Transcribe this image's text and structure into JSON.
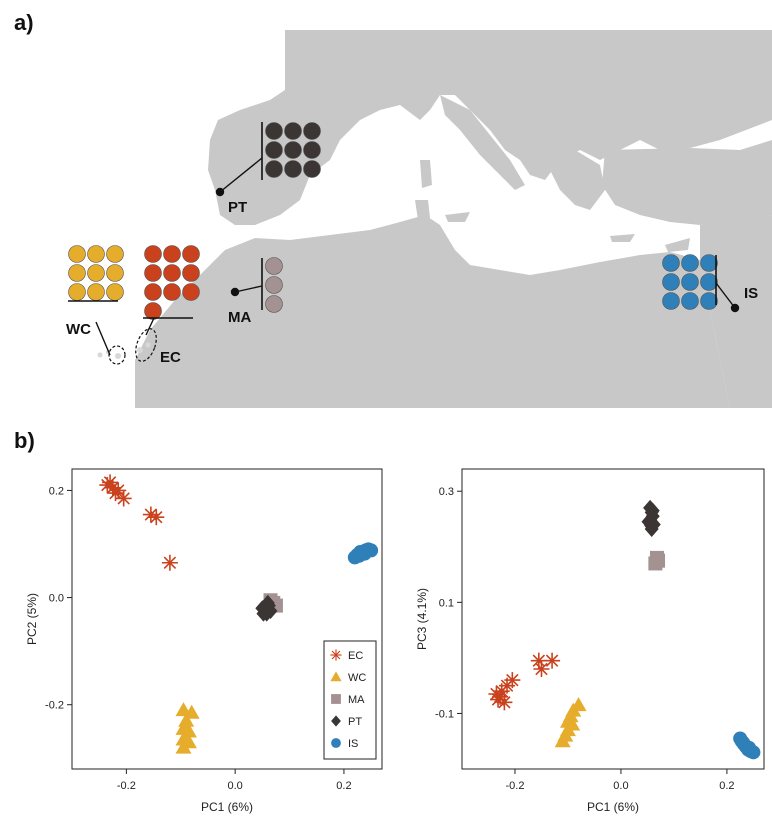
{
  "panel_labels": {
    "a": "a)",
    "b": "b)"
  },
  "colors": {
    "EC": "#c9421d",
    "WC": "#e6ac2c",
    "MA": "#a49293",
    "PT": "#3b3534",
    "IS": "#2f7fb8",
    "land": "#c8c8c8"
  },
  "map": {
    "pops": [
      {
        "code": "PT",
        "label": "PT",
        "samples": 9
      },
      {
        "code": "MA",
        "label": "MA",
        "samples": 3
      },
      {
        "code": "WC",
        "label": "WC",
        "samples": 9
      },
      {
        "code": "EC",
        "label": "EC",
        "samples": 10
      },
      {
        "code": "IS",
        "label": "IS",
        "samples": 9
      }
    ]
  },
  "chart_data": [
    {
      "type": "scatter",
      "xlabel": "PC1 (6%)",
      "ylabel": "PC2 (5%)",
      "xlim": [
        -0.3,
        0.27
      ],
      "ylim": [
        -0.32,
        0.24
      ],
      "xticks": [
        {
          "v": -0.2,
          "l": "-0.2"
        },
        {
          "v": 0.0,
          "l": "0.0"
        },
        {
          "v": 0.2,
          "l": "0.2"
        }
      ],
      "yticks": [
        {
          "v": -0.2,
          "l": "-0.2"
        },
        {
          "v": 0.0,
          "l": "0.0"
        },
        {
          "v": 0.2,
          "l": "0.2"
        }
      ],
      "legend": {
        "position": "bottom-right",
        "entries": [
          "EC",
          "WC",
          "MA",
          "PT",
          "IS"
        ]
      },
      "series": [
        {
          "name": "EC",
          "marker": "asterisk",
          "points": [
            [
              -0.235,
              0.21
            ],
            [
              -0.225,
              0.205
            ],
            [
              -0.22,
              0.195
            ],
            [
              -0.215,
              0.2
            ],
            [
              -0.23,
              0.215
            ],
            [
              -0.205,
              0.185
            ],
            [
              -0.155,
              0.155
            ],
            [
              -0.145,
              0.15
            ],
            [
              -0.12,
              0.065
            ]
          ]
        },
        {
          "name": "WC",
          "marker": "triangle",
          "points": [
            [
              -0.095,
              -0.21
            ],
            [
              -0.08,
              -0.215
            ],
            [
              -0.09,
              -0.23
            ],
            [
              -0.095,
              -0.245
            ],
            [
              -0.085,
              -0.25
            ],
            [
              -0.095,
              -0.265
            ],
            [
              -0.085,
              -0.27
            ],
            [
              -0.095,
              -0.28
            ]
          ]
        },
        {
          "name": "MA",
          "marker": "square",
          "points": [
            [
              0.065,
              -0.005
            ],
            [
              0.07,
              -0.01
            ],
            [
              0.075,
              -0.015
            ]
          ]
        },
        {
          "name": "PT",
          "marker": "diamond",
          "points": [
            [
              0.05,
              -0.02
            ],
            [
              0.055,
              -0.025
            ],
            [
              0.06,
              -0.02
            ],
            [
              0.058,
              -0.03
            ],
            [
              0.062,
              -0.015
            ],
            [
              0.052,
              -0.03
            ],
            [
              0.06,
              -0.01
            ],
            [
              0.065,
              -0.025
            ],
            [
              0.057,
              -0.018
            ]
          ]
        },
        {
          "name": "IS",
          "marker": "circle",
          "points": [
            [
              0.22,
              0.075
            ],
            [
              0.225,
              0.08
            ],
            [
              0.23,
              0.085
            ],
            [
              0.235,
              0.085
            ],
            [
              0.24,
              0.088
            ],
            [
              0.245,
              0.09
            ],
            [
              0.25,
              0.088
            ],
            [
              0.228,
              0.078
            ],
            [
              0.238,
              0.082
            ]
          ]
        }
      ]
    },
    {
      "type": "scatter",
      "xlabel": "PC1 (6%)",
      "ylabel": "PC3 (4.1%)",
      "xlim": [
        -0.3,
        0.27
      ],
      "ylim": [
        -0.2,
        0.34
      ],
      "xticks": [
        {
          "v": -0.2,
          "l": "-0.2"
        },
        {
          "v": 0.0,
          "l": "0.0"
        },
        {
          "v": 0.2,
          "l": "0.2"
        }
      ],
      "yticks": [
        {
          "v": -0.1,
          "l": "-0.1"
        },
        {
          "v": 0.1,
          "l": "0.1"
        },
        {
          "v": 0.3,
          "l": "0.3"
        }
      ],
      "series": [
        {
          "name": "EC",
          "marker": "asterisk",
          "points": [
            [
              -0.235,
              -0.065
            ],
            [
              -0.228,
              -0.07
            ],
            [
              -0.232,
              -0.075
            ],
            [
              -0.22,
              -0.08
            ],
            [
              -0.225,
              -0.06
            ],
            [
              -0.215,
              -0.05
            ],
            [
              -0.205,
              -0.04
            ],
            [
              -0.155,
              -0.005
            ],
            [
              -0.15,
              -0.02
            ],
            [
              -0.13,
              -0.005
            ]
          ]
        },
        {
          "name": "WC",
          "marker": "triangle",
          "points": [
            [
              -0.08,
              -0.085
            ],
            [
              -0.09,
              -0.095
            ],
            [
              -0.095,
              -0.105
            ],
            [
              -0.1,
              -0.115
            ],
            [
              -0.092,
              -0.12
            ],
            [
              -0.1,
              -0.13
            ],
            [
              -0.105,
              -0.14
            ],
            [
              -0.11,
              -0.15
            ]
          ]
        },
        {
          "name": "MA",
          "marker": "square",
          "points": [
            [
              0.065,
              0.17
            ],
            [
              0.07,
              0.175
            ],
            [
              0.068,
              0.18
            ]
          ]
        },
        {
          "name": "PT",
          "marker": "diamond",
          "points": [
            [
              0.055,
              0.27
            ],
            [
              0.058,
              0.262
            ],
            [
              0.06,
              0.255
            ],
            [
              0.055,
              0.248
            ],
            [
              0.062,
              0.24
            ],
            [
              0.058,
              0.232
            ],
            [
              0.052,
              0.245
            ],
            [
              0.06,
              0.265
            ],
            [
              0.057,
              0.238
            ]
          ]
        },
        {
          "name": "IS",
          "marker": "circle",
          "points": [
            [
              0.225,
              -0.145
            ],
            [
              0.228,
              -0.15
            ],
            [
              0.232,
              -0.155
            ],
            [
              0.236,
              -0.16
            ],
            [
              0.24,
              -0.165
            ],
            [
              0.245,
              -0.168
            ],
            [
              0.25,
              -0.17
            ],
            [
              0.23,
              -0.152
            ],
            [
              0.242,
              -0.162
            ]
          ]
        }
      ]
    }
  ]
}
